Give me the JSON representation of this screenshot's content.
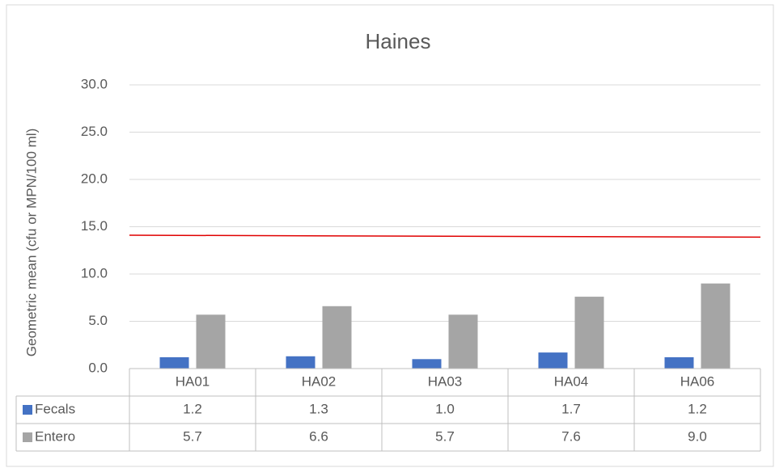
{
  "chart_data": {
    "type": "bar",
    "title": "Haines",
    "y_label": "Geometric mean (cfu or MPN/100 ml)",
    "categories": [
      "HA01",
      "HA02",
      "HA03",
      "HA04",
      "HA06"
    ],
    "series": [
      {
        "name": "Fecals",
        "color": "#4472c4",
        "values": [
          1.2,
          1.3,
          1.0,
          1.7,
          1.2
        ],
        "value_labels": [
          "1.2",
          "1.3",
          "1.0",
          "1.7",
          "1.2"
        ]
      },
      {
        "name": "Entero",
        "color": "#a5a5a5",
        "values": [
          5.7,
          6.6,
          5.7,
          7.6,
          9.0
        ],
        "value_labels": [
          "5.7",
          "6.6",
          "5.7",
          "7.6",
          "9.0"
        ]
      }
    ],
    "reference_line": {
      "color": "#e00000",
      "values": [
        14.1,
        13.9
      ]
    },
    "ylim": [
      0,
      30
    ],
    "yticks": [
      {
        "value": 0,
        "label": "0.0"
      },
      {
        "value": 5,
        "label": "5.0"
      },
      {
        "value": 10,
        "label": "10.0"
      },
      {
        "value": 15,
        "label": "15.0"
      },
      {
        "value": 20,
        "label": "20.0"
      },
      {
        "value": 25,
        "label": "25.0"
      },
      {
        "value": 30,
        "label": "30.0"
      }
    ],
    "grid": true
  }
}
